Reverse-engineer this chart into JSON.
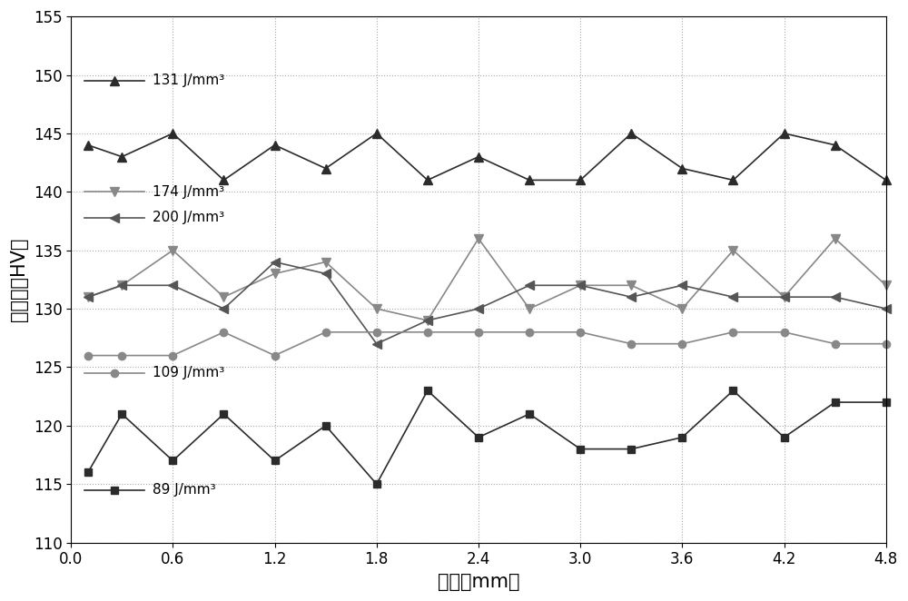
{
  "x": [
    0.1,
    0.3,
    0.6,
    0.9,
    1.2,
    1.5,
    1.8,
    2.1,
    2.4,
    2.7,
    3.0,
    3.3,
    3.6,
    3.9,
    4.2,
    4.5,
    4.8
  ],
  "series": [
    {
      "label": "131 J/mm³",
      "color": "#2b2b2b",
      "marker": "^",
      "markersize": 7,
      "linewidth": 1.2,
      "values": [
        144,
        143,
        145,
        141,
        144,
        142,
        145,
        141,
        143,
        141,
        141,
        145,
        142,
        141,
        145,
        144,
        141
      ]
    },
    {
      "label": "174 J/mm³",
      "color": "#888888",
      "marker": "v",
      "markersize": 7,
      "linewidth": 1.2,
      "values": [
        131,
        132,
        135,
        131,
        133,
        134,
        130,
        129,
        136,
        130,
        132,
        132,
        130,
        135,
        131,
        136,
        132
      ]
    },
    {
      "label": "200 J/mm³",
      "color": "#555555",
      "marker": "<",
      "markersize": 7,
      "linewidth": 1.2,
      "values": [
        131,
        132,
        132,
        130,
        134,
        133,
        127,
        129,
        130,
        132,
        132,
        131,
        132,
        131,
        131,
        131,
        130
      ]
    },
    {
      "label": "109 J/mm³",
      "color": "#888888",
      "marker": "o",
      "markersize": 6,
      "linewidth": 1.2,
      "values": [
        126,
        126,
        126,
        128,
        126,
        128,
        128,
        128,
        128,
        128,
        128,
        127,
        127,
        128,
        128,
        127,
        127
      ]
    },
    {
      "label": "89 J/mm³",
      "color": "#2b2b2b",
      "marker": "s",
      "markersize": 6,
      "linewidth": 1.2,
      "values": [
        116,
        121,
        117,
        121,
        117,
        120,
        115,
        123,
        119,
        121,
        118,
        118,
        119,
        123,
        119,
        122,
        122
      ]
    }
  ],
  "legend_entries": [
    {
      "label": "131 J/mm³",
      "series_idx": 0,
      "x_data": 0.08,
      "y_data": 149.5,
      "ha": "left"
    },
    {
      "label": "174 J/mm³",
      "series_idx": 1,
      "x_data": 0.08,
      "y_data": 140.0,
      "ha": "left"
    },
    {
      "label": "200 J/mm³",
      "series_idx": 2,
      "x_data": 0.08,
      "y_data": 137.8,
      "ha": "left"
    },
    {
      "label": "109 J/mm³",
      "series_idx": 3,
      "x_data": 0.08,
      "y_data": 124.5,
      "ha": "left"
    },
    {
      "label": "89 J/mm³",
      "series_idx": 4,
      "x_data": 0.08,
      "y_data": 114.5,
      "ha": "left"
    }
  ],
  "xlabel": "间隔（mm）",
  "ylabel": "微硬度（HV）",
  "xlim": [
    0.0,
    4.8
  ],
  "ylim": [
    110,
    155
  ],
  "xticks": [
    0.0,
    0.6,
    1.2,
    1.8,
    2.4,
    3.0,
    3.6,
    4.2,
    4.8
  ],
  "yticks": [
    110,
    115,
    120,
    125,
    130,
    135,
    140,
    145,
    150,
    155
  ],
  "grid_color": "#aaaaaa",
  "bg_color": "#ffffff",
  "fontsize_label": 15,
  "fontsize_tick": 12,
  "fontsize_legend": 11
}
